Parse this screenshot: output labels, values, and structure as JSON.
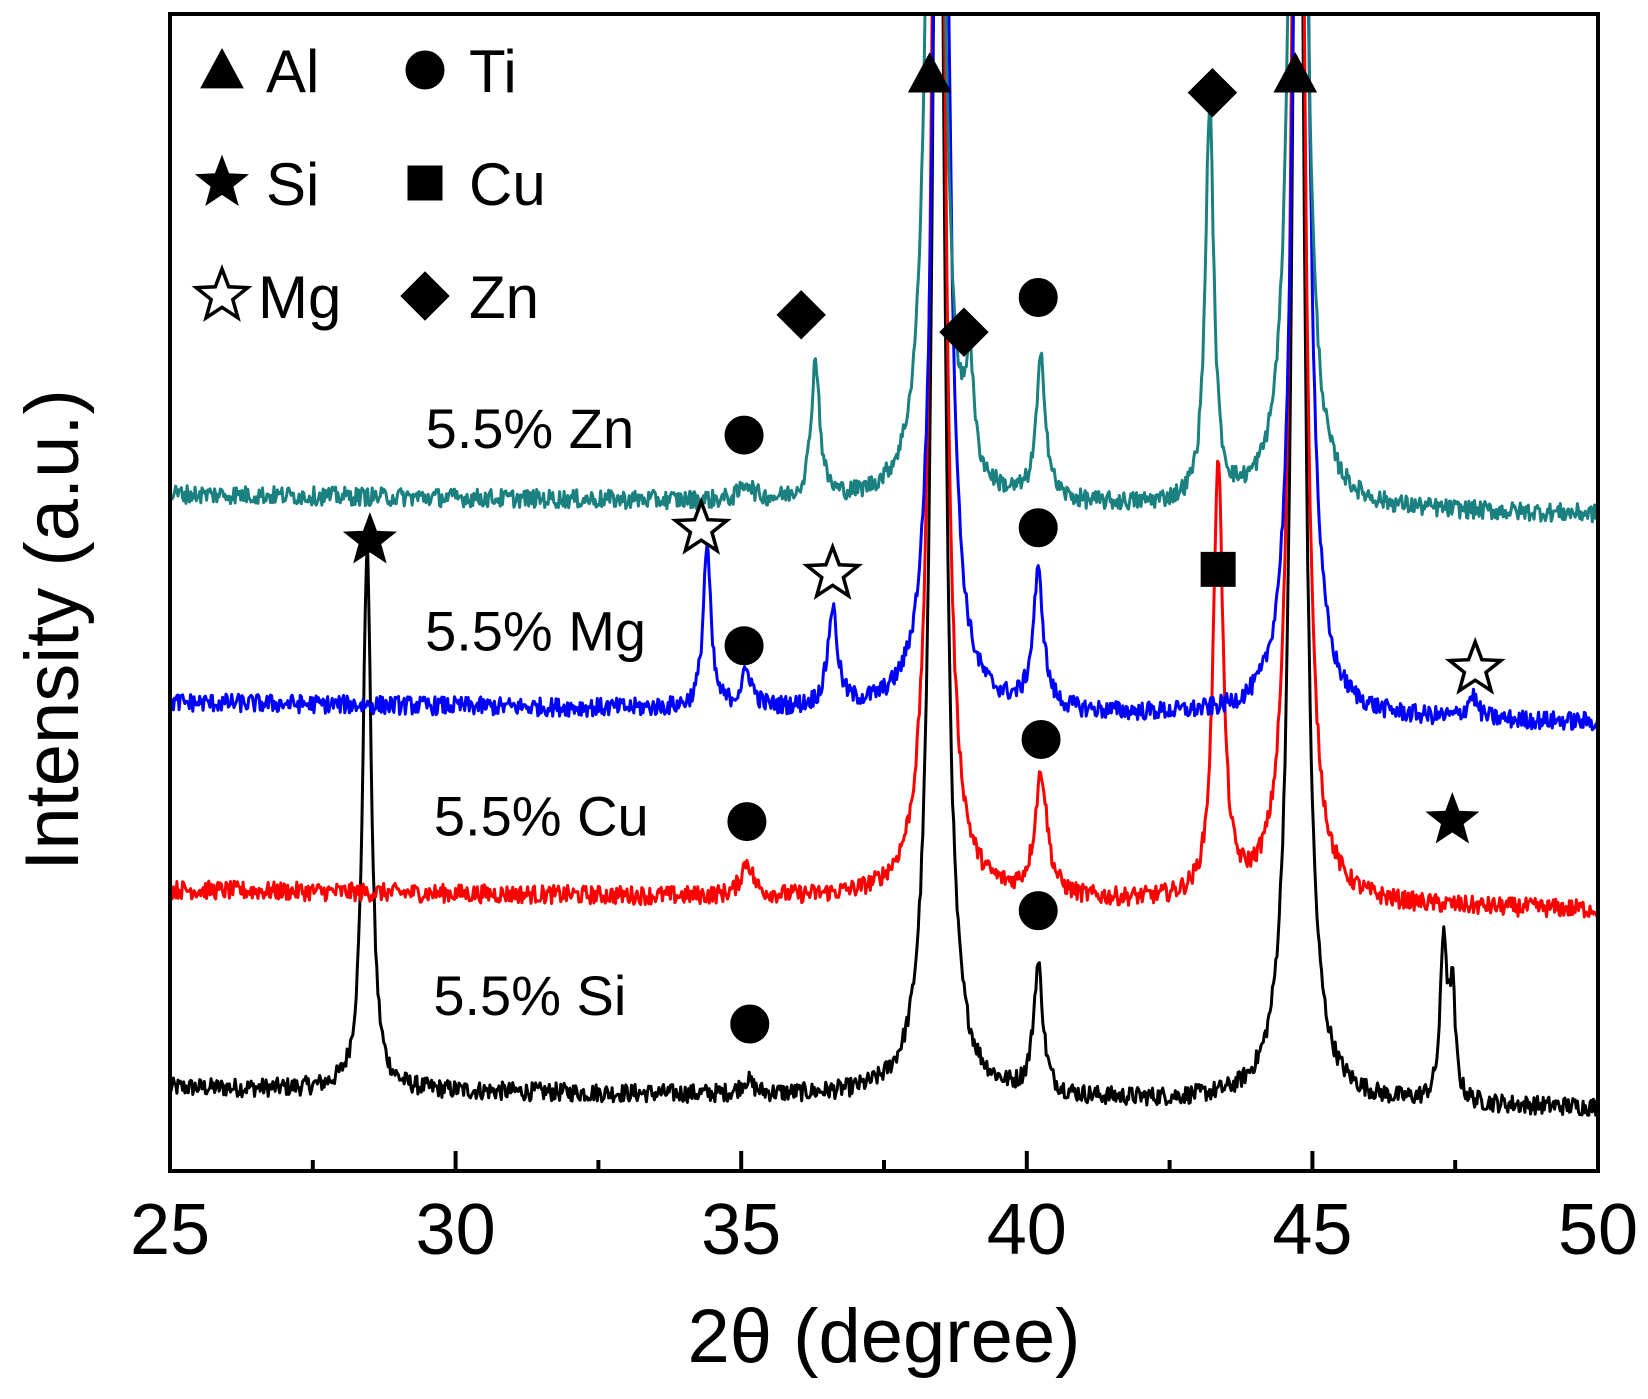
{
  "chart_data": {
    "type": "line",
    "title": "",
    "xlabel": "2θ (degree)",
    "ylabel": "Intensity (a.u.)",
    "xlim": [
      25,
      50
    ],
    "ylim": [
      0,
      100
    ],
    "x_major_ticks": [
      25,
      30,
      35,
      40,
      45,
      50
    ],
    "x_tick_labels": [
      "25",
      "30",
      "35",
      "40",
      "45",
      "50"
    ],
    "x_minor_ticks": [
      27.5,
      32.5,
      37.5,
      42.5,
      47.5
    ],
    "y_ticks_shown": false,
    "grid": false,
    "legend": {
      "placement": "top-left",
      "entries": [
        {
          "symbol": "triangle",
          "label": "Al",
          "filled": true
        },
        {
          "symbol": "circle",
          "label": "Ti",
          "filled": true
        },
        {
          "symbol": "star",
          "label": "Si",
          "filled": true
        },
        {
          "symbol": "square",
          "label": "Cu",
          "filled": true
        },
        {
          "symbol": "star",
          "label": "Mg",
          "filled": false
        },
        {
          "symbol": "diamond",
          "label": "Zn",
          "filled": true
        }
      ]
    },
    "series": [
      {
        "name": "5.5% Si",
        "color": "#000000",
        "baseline": 7.2,
        "peaks": [
          {
            "x": 28.45,
            "height": 47,
            "width": 0.09
          },
          {
            "x": 35.1,
            "height": 1.2,
            "width": 0.12
          },
          {
            "x": 38.45,
            "height": 140,
            "width": 0.12
          },
          {
            "x": 40.2,
            "height": 11,
            "width": 0.1
          },
          {
            "x": 44.75,
            "height": 140,
            "width": 0.12
          },
          {
            "x": 47.3,
            "height": 14,
            "width": 0.07
          },
          {
            "x": 47.45,
            "height": 9,
            "width": 0.06
          }
        ]
      },
      {
        "name": "5.5% Cu",
        "color": "#ff0000",
        "baseline": 24.3,
        "peaks": [
          {
            "x": 35.1,
            "height": 3,
            "width": 0.12
          },
          {
            "x": 38.45,
            "height": 140,
            "width": 0.12
          },
          {
            "x": 40.25,
            "height": 10.5,
            "width": 0.13
          },
          {
            "x": 43.35,
            "height": 38,
            "width": 0.1
          },
          {
            "x": 44.75,
            "height": 140,
            "width": 0.12
          }
        ]
      },
      {
        "name": "5.5% Mg",
        "color": "#0000ff",
        "baseline": 40.5,
        "peaks": [
          {
            "x": 34.4,
            "height": 14,
            "width": 0.08
          },
          {
            "x": 35.1,
            "height": 3,
            "width": 0.12
          },
          {
            "x": 36.6,
            "height": 8.5,
            "width": 0.1
          },
          {
            "x": 38.5,
            "height": 140,
            "width": 0.12
          },
          {
            "x": 40.2,
            "height": 11.5,
            "width": 0.11
          },
          {
            "x": 44.8,
            "height": 140,
            "width": 0.12
          },
          {
            "x": 47.8,
            "height": 2,
            "width": 0.1
          }
        ]
      },
      {
        "name": "5.5% Zn",
        "color": "#1a8080",
        "baseline": 58.5,
        "peaks": [
          {
            "x": 35.1,
            "height": 1.5,
            "width": 0.12
          },
          {
            "x": 36.3,
            "height": 12,
            "width": 0.09
          },
          {
            "x": 38.4,
            "height": 140,
            "width": 0.12
          },
          {
            "x": 39.0,
            "height": 9,
            "width": 0.08
          },
          {
            "x": 40.25,
            "height": 12,
            "width": 0.1
          },
          {
            "x": 43.2,
            "height": 34,
            "width": 0.09
          },
          {
            "x": 44.75,
            "height": 140,
            "width": 0.12
          }
        ]
      }
    ],
    "series_labels": [
      {
        "text": "5.5% Si",
        "x": 31.3,
        "y": 13.5
      },
      {
        "text": "5.5% Cu",
        "x": 31.5,
        "y": 29
      },
      {
        "text": "5.5% Mg",
        "x": 31.4,
        "y": 45
      },
      {
        "text": "5.5% Zn",
        "x": 31.3,
        "y": 62.5
      }
    ],
    "phase_markers": [
      {
        "symbol": "triangle",
        "filled": true,
        "phase": "Al",
        "x": 38.3,
        "y": 94.8
      },
      {
        "symbol": "triangle",
        "filled": true,
        "phase": "Al",
        "x": 44.7,
        "y": 94.8
      },
      {
        "symbol": "diamond",
        "filled": true,
        "phase": "Zn",
        "x": 36.05,
        "y": 74
      },
      {
        "symbol": "diamond",
        "filled": true,
        "phase": "Zn",
        "x": 38.9,
        "y": 72.5
      },
      {
        "symbol": "diamond",
        "filled": true,
        "phase": "Zn",
        "x": 43.25,
        "y": 93.2
      },
      {
        "symbol": "circle",
        "filled": true,
        "phase": "Ti",
        "x": 40.2,
        "y": 75.5
      },
      {
        "symbol": "circle",
        "filled": true,
        "phase": "Ti",
        "x": 35.05,
        "y": 63.6
      },
      {
        "symbol": "circle",
        "filled": true,
        "phase": "Ti",
        "x": 40.2,
        "y": 55.6
      },
      {
        "symbol": "circle",
        "filled": true,
        "phase": "Ti",
        "x": 35.05,
        "y": 45.4
      },
      {
        "symbol": "circle",
        "filled": true,
        "phase": "Ti",
        "x": 40.25,
        "y": 37.3
      },
      {
        "symbol": "circle",
        "filled": true,
        "phase": "Ti",
        "x": 35.1,
        "y": 30.2
      },
      {
        "symbol": "circle",
        "filled": true,
        "phase": "Ti",
        "x": 40.2,
        "y": 22.5
      },
      {
        "symbol": "circle",
        "filled": true,
        "phase": "Ti",
        "x": 35.15,
        "y": 12.7
      },
      {
        "symbol": "star",
        "filled": true,
        "phase": "Si",
        "x": 28.5,
        "y": 54.5
      },
      {
        "symbol": "star",
        "filled": true,
        "phase": "Si",
        "x": 47.45,
        "y": 30.3
      },
      {
        "symbol": "star",
        "filled": false,
        "phase": "Mg",
        "x": 34.3,
        "y": 55.5
      },
      {
        "symbol": "star",
        "filled": false,
        "phase": "Mg",
        "x": 36.6,
        "y": 51.6
      },
      {
        "symbol": "star",
        "filled": false,
        "phase": "Mg",
        "x": 47.85,
        "y": 43.4
      },
      {
        "symbol": "square",
        "filled": true,
        "phase": "Cu",
        "x": 43.35,
        "y": 52
      }
    ]
  }
}
